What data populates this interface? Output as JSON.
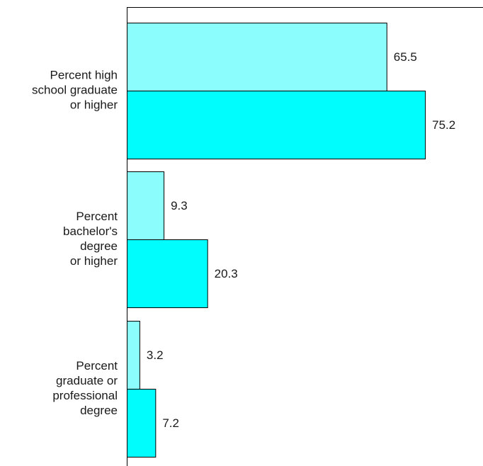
{
  "chart_data": {
    "type": "bar",
    "orientation": "horizontal",
    "title": "",
    "xlabel": "",
    "ylabel": "",
    "xlim": [
      0,
      85
    ],
    "grid": false,
    "categories": [
      [
        "Percent high",
        "school graduate",
        "or higher"
      ],
      [
        "Percent",
        "bachelor's",
        "degree",
        "or higher"
      ],
      [
        "Percent",
        "graduate or",
        "professional",
        "degree"
      ]
    ],
    "series": [
      {
        "values": [
          65.5,
          9.3,
          3.2
        ],
        "color": "#8cfdfd"
      },
      {
        "values": [
          75.2,
          20.3,
          7.2
        ],
        "color": "#00fdfd"
      }
    ],
    "value_labels": [
      [
        "65.5",
        "9.3",
        "3.2"
      ],
      [
        "75.2",
        "20.3",
        "7.2"
      ]
    ]
  }
}
